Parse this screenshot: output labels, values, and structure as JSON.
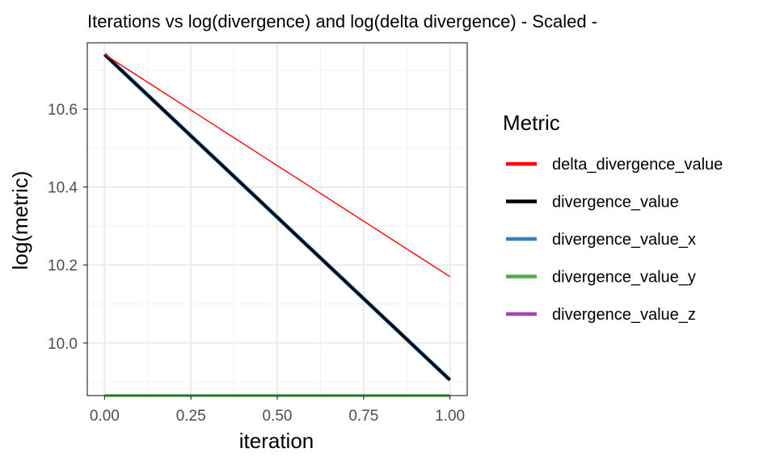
{
  "chart_data": {
    "type": "line",
    "title": "Iterations vs log(divergence) and log(delta divergence) - Scaled -",
    "xlabel": "iteration",
    "ylabel": "log(metric)",
    "xlim": [
      -0.05,
      1.05
    ],
    "ylim": [
      9.865,
      10.77
    ],
    "x_ticks": [
      0.0,
      0.25,
      0.5,
      0.75,
      1.0
    ],
    "x_tick_labels": [
      "0.00",
      "0.25",
      "0.50",
      "0.75",
      "1.00"
    ],
    "y_ticks": [
      10.0,
      10.2,
      10.4,
      10.6
    ],
    "y_tick_labels": [
      "10.0",
      "10.2",
      "10.4",
      "10.6"
    ],
    "grid": true,
    "legend_position": "right",
    "legend_title": "Metric",
    "series": [
      {
        "name": "delta_divergence_value",
        "color": "#FF0000",
        "x": [
          0,
          1
        ],
        "y": [
          10.74,
          10.17
        ],
        "width": "thin"
      },
      {
        "name": "divergence_value",
        "color": "#000000",
        "x": [
          0,
          1
        ],
        "y": [
          10.74,
          9.905
        ],
        "width": "thick"
      },
      {
        "name": "divergence_value_x",
        "color": "#377EB8",
        "x": [
          0,
          1
        ],
        "y": [
          10.74,
          9.905
        ],
        "width": "thick"
      },
      {
        "name": "divergence_value_y",
        "color": "#4DAF4A",
        "x": [
          0,
          1
        ],
        "y": [
          9.865,
          9.865
        ],
        "width": "thick"
      },
      {
        "name": "divergence_value_z",
        "color": "#984EA3",
        "x": [
          0,
          1
        ],
        "y": [
          9.865,
          9.865
        ],
        "width": "thick"
      }
    ]
  }
}
